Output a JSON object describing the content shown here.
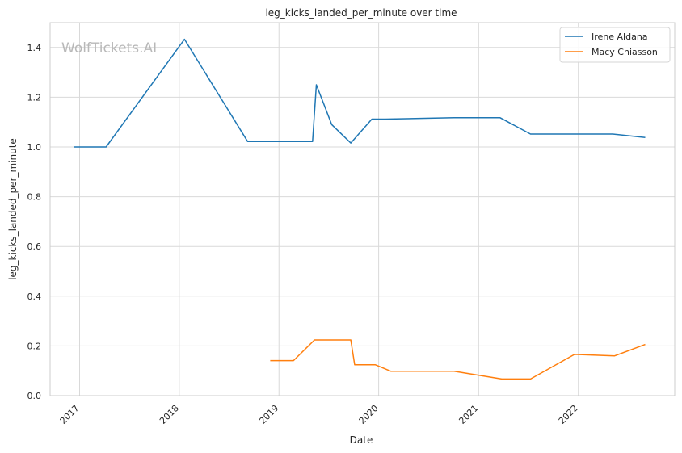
{
  "chart_data": {
    "type": "line",
    "title": "leg_kicks_landed_per_minute over time",
    "xlabel": "Date",
    "ylabel": "leg_kicks_landed_per_minute",
    "watermark": "WolfTickets.AI",
    "x_ticks": [
      "2017",
      "2018",
      "2019",
      "2020",
      "2021",
      "2022"
    ],
    "y_ticks": [
      "0.0",
      "0.2",
      "0.4",
      "0.6",
      "0.8",
      "1.0",
      "1.2",
      "1.4"
    ],
    "xlim": [
      "2016-09-15",
      "2022-12-20"
    ],
    "ylim": [
      0,
      1.5
    ],
    "grid": true,
    "legend_position": "top-right",
    "series": [
      {
        "name": "Irene Aldana",
        "color": "#1f77b4",
        "points": [
          {
            "x": "2016-12-10",
            "y": 1.0
          },
          {
            "x": "2017-04-08",
            "y": 1.0
          },
          {
            "x": "2018-01-20",
            "y": 1.433
          },
          {
            "x": "2018-09-08",
            "y": 1.022
          },
          {
            "x": "2019-05-04",
            "y": 1.022
          },
          {
            "x": "2019-05-18",
            "y": 1.25
          },
          {
            "x": "2019-07-13",
            "y": 1.09
          },
          {
            "x": "2019-09-21",
            "y": 1.016
          },
          {
            "x": "2019-12-07",
            "y": 1.112
          },
          {
            "x": "2020-01-25",
            "y": 1.112
          },
          {
            "x": "2020-10-03",
            "y": 1.118
          },
          {
            "x": "2021-03-20",
            "y": 1.118
          },
          {
            "x": "2021-07-10",
            "y": 1.052
          },
          {
            "x": "2022-05-07",
            "y": 1.052
          },
          {
            "x": "2022-09-03",
            "y": 1.038
          }
        ]
      },
      {
        "name": "Macy Chiasson",
        "color": "#ff7f0e",
        "points": [
          {
            "x": "2018-11-30",
            "y": 0.141
          },
          {
            "x": "2019-02-23",
            "y": 0.141
          },
          {
            "x": "2019-05-11",
            "y": 0.224
          },
          {
            "x": "2019-09-21",
            "y": 0.224
          },
          {
            "x": "2019-10-05",
            "y": 0.124
          },
          {
            "x": "2019-12-20",
            "y": 0.124
          },
          {
            "x": "2020-02-15",
            "y": 0.098
          },
          {
            "x": "2020-10-03",
            "y": 0.098
          },
          {
            "x": "2021-03-27",
            "y": 0.067
          },
          {
            "x": "2021-07-10",
            "y": 0.067
          },
          {
            "x": "2021-12-18",
            "y": 0.166
          },
          {
            "x": "2022-05-14",
            "y": 0.16
          },
          {
            "x": "2022-09-03",
            "y": 0.206
          }
        ]
      }
    ]
  }
}
